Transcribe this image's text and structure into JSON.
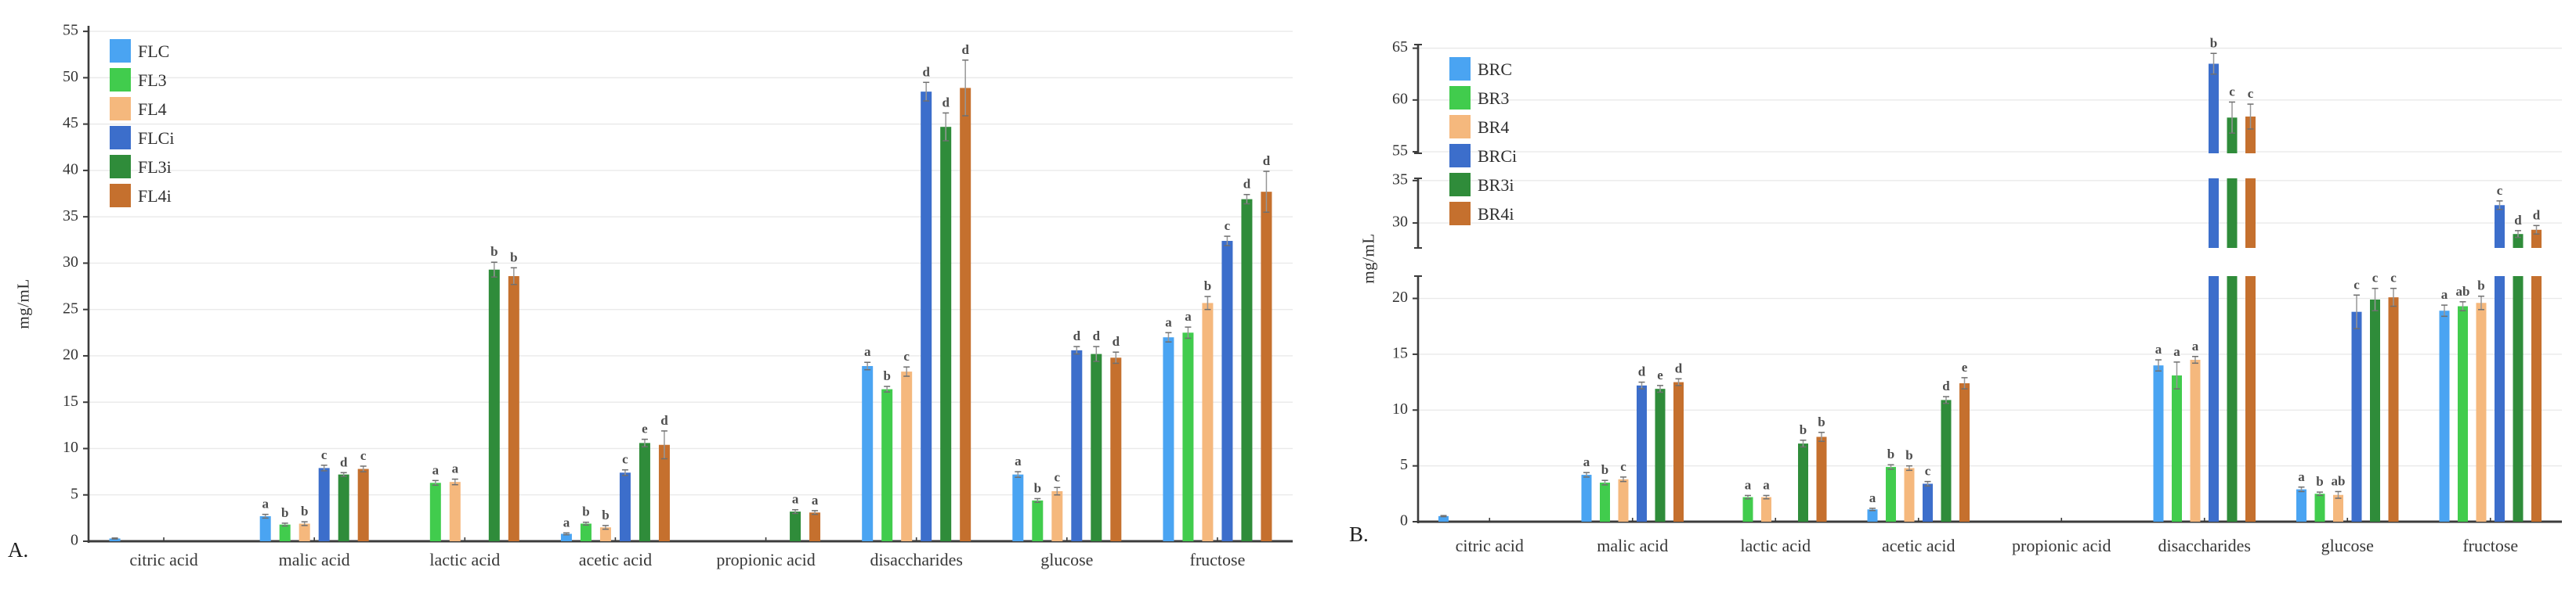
{
  "figure": {
    "background": "#ffffff",
    "unit": "mg/mL",
    "grid_color": "#eaeaea",
    "axis_color": "#3c3c3c",
    "error_bar_color": "#979797",
    "letter_color": "#4d4d4d",
    "text_color": "#333333"
  },
  "chart_data": [
    {
      "type": "bar",
      "panel_label": "A.",
      "ylabel": "mg/mL",
      "legend_position": "top-left-inside",
      "grid": true,
      "ylim": [
        0,
        55
      ],
      "categories": [
        "citric acid",
        "malic acid",
        "lactic acid",
        "acetic acid",
        "propionic acid",
        "disaccharides",
        "glucose",
        "fructose"
      ],
      "axis_segments": [
        {
          "range": [
            0,
            55.6
          ],
          "ticks": [
            0,
            5,
            10,
            15,
            20,
            25,
            30,
            35,
            40,
            45,
            50,
            55
          ]
        }
      ],
      "series": [
        {
          "name": "FLC",
          "color": "#4AA4F2",
          "values": [
            0.3,
            2.7,
            0,
            0.8,
            0,
            18.9,
            7.2,
            22.0
          ],
          "errors": [
            0.05,
            0.2,
            0,
            0.1,
            0,
            0.4,
            0.3,
            0.5
          ],
          "letters": [
            "",
            "a",
            "",
            "a",
            "",
            "a",
            "a",
            "a"
          ]
        },
        {
          "name": "FL3",
          "color": "#41CC4D",
          "values": [
            0,
            1.8,
            6.3,
            1.9,
            0,
            16.4,
            4.4,
            22.5
          ],
          "errors": [
            0,
            0.15,
            0.25,
            0.15,
            0,
            0.3,
            0.2,
            0.6
          ],
          "letters": [
            "",
            "b",
            "a",
            "b",
            "",
            "b",
            "b",
            "a"
          ]
        },
        {
          "name": "FL4",
          "color": "#F5B87D",
          "values": [
            0,
            1.9,
            6.4,
            1.5,
            0,
            18.3,
            5.4,
            25.7
          ],
          "errors": [
            0,
            0.2,
            0.3,
            0.2,
            0,
            0.5,
            0.4,
            0.7
          ],
          "letters": [
            "",
            "b",
            "a",
            "b",
            "",
            "c",
            "c",
            "b"
          ]
        },
        {
          "name": "FLCi",
          "color": "#3C6ECB",
          "values": [
            0,
            7.9,
            0,
            7.4,
            0,
            48.5,
            20.6,
            32.4
          ],
          "errors": [
            0,
            0.3,
            0,
            0.3,
            0,
            1.0,
            0.4,
            0.5
          ],
          "letters": [
            "",
            "c",
            "",
            "c",
            "",
            "d",
            "d",
            "c"
          ]
        },
        {
          "name": "FL3i",
          "color": "#2F8C3A",
          "values": [
            0,
            7.2,
            29.3,
            10.6,
            3.2,
            44.7,
            20.2,
            36.9
          ],
          "errors": [
            0,
            0.2,
            0.8,
            0.4,
            0.2,
            1.5,
            0.8,
            0.5
          ],
          "letters": [
            "",
            "d",
            "b",
            "e",
            "a",
            "d",
            "d",
            "d"
          ]
        },
        {
          "name": "FL4i",
          "color": "#C5702E",
          "values": [
            0,
            7.8,
            28.6,
            10.4,
            3.1,
            48.9,
            19.8,
            37.7
          ],
          "errors": [
            0,
            0.3,
            0.9,
            1.5,
            0.2,
            3.0,
            0.6,
            2.2
          ],
          "letters": [
            "",
            "c",
            "b",
            "d",
            "a",
            "d",
            "d",
            "d"
          ]
        }
      ]
    },
    {
      "type": "bar",
      "panel_label": "B.",
      "ylabel": "mg/mL",
      "legend_position": "top-left-inside",
      "grid": true,
      "ylim": [
        0,
        65
      ],
      "axis_breaks": [
        [
          22,
          27
        ],
        [
          35.3,
          54.8
        ]
      ],
      "categories": [
        "citric acid",
        "malic acid",
        "lactic acid",
        "acetic acid",
        "propionic acid",
        "disaccharides",
        "glucose",
        "fructose"
      ],
      "axis_segments": [
        {
          "range": [
            0,
            22.0
          ],
          "ticks": [
            0,
            5,
            10,
            15,
            20
          ]
        },
        {
          "range": [
            27.06,
            35.26
          ],
          "ticks": [
            30,
            35
          ]
        },
        {
          "range": [
            54.85,
            65.35
          ],
          "ticks": [
            55,
            60,
            65
          ]
        }
      ],
      "series": [
        {
          "name": "BRC",
          "color": "#4AA4F2",
          "values": [
            0.5,
            4.2,
            0,
            1.1,
            0,
            14.0,
            2.9,
            18.9
          ],
          "errors": [
            0.05,
            0.2,
            0,
            0.1,
            0,
            0.5,
            0.2,
            0.5
          ],
          "letters": [
            "",
            "a",
            "",
            "a",
            "",
            "a",
            "a",
            "a"
          ]
        },
        {
          "name": "BR3",
          "color": "#41CC4D",
          "values": [
            0,
            3.5,
            2.2,
            4.9,
            0,
            13.1,
            2.5,
            19.3
          ],
          "errors": [
            0,
            0.2,
            0.15,
            0.2,
            0,
            1.2,
            0.15,
            0.4
          ],
          "letters": [
            "",
            "b",
            "a",
            "b",
            "",
            "a",
            "b",
            "ab"
          ]
        },
        {
          "name": "BR4",
          "color": "#F5B87D",
          "values": [
            0,
            3.8,
            2.2,
            4.8,
            0,
            14.5,
            2.4,
            19.6
          ],
          "errors": [
            0,
            0.2,
            0.15,
            0.2,
            0,
            0.3,
            0.3,
            0.6
          ],
          "letters": [
            "",
            "c",
            "a",
            "b",
            "",
            "a",
            "ab",
            "b"
          ]
        },
        {
          "name": "BRCi",
          "color": "#3C6ECB",
          "values": [
            0,
            12.2,
            0,
            3.4,
            0,
            63.5,
            18.8,
            32.1
          ],
          "errors": [
            0,
            0.3,
            0,
            0.2,
            0,
            1.0,
            1.5,
            0.5
          ],
          "letters": [
            "",
            "d",
            "",
            "c",
            "",
            "b",
            "c",
            "c"
          ]
        },
        {
          "name": "BR3i",
          "color": "#2F8C3A",
          "values": [
            0,
            11.9,
            7.0,
            10.9,
            0,
            58.3,
            19.9,
            28.7
          ],
          "errors": [
            0,
            0.3,
            0.3,
            0.3,
            0,
            1.5,
            1.0,
            0.4
          ],
          "letters": [
            "",
            "e",
            "b",
            "d",
            "",
            "c",
            "c",
            "d"
          ]
        },
        {
          "name": "BR4i",
          "color": "#C5702E",
          "values": [
            0,
            12.5,
            7.6,
            12.4,
            0,
            58.4,
            20.1,
            29.2
          ],
          "errors": [
            0,
            0.3,
            0.4,
            0.5,
            0,
            1.2,
            0.8,
            0.5
          ],
          "letters": [
            "",
            "d",
            "b",
            "e",
            "",
            "c",
            "c",
            "d"
          ]
        }
      ]
    }
  ]
}
